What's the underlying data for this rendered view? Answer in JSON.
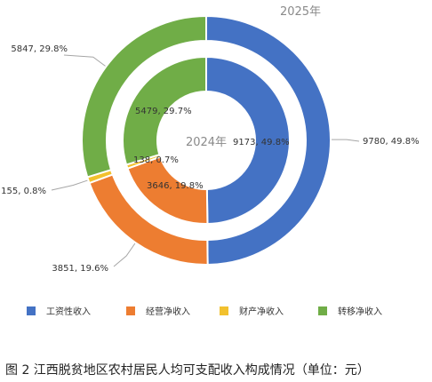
{
  "caption": "图 2   江西脱贫地区农村居民人均可支配收入构成情况（单位：元）",
  "chart_data": {
    "type": "donut",
    "categories": [
      "工资性收入",
      "经营净收入",
      "财产净收入",
      "转移净收入"
    ],
    "colors": [
      "#4472c4",
      "#ed7d31",
      "#f2c12e",
      "#70ad47"
    ],
    "legend_position": "bottom",
    "rings": [
      {
        "name": "2025年",
        "values": [
          9780,
          3851,
          155,
          5847
        ],
        "labels": [
          "9780, 49.8%",
          "3851, 19.6%",
          "155, 0.8%",
          "5847, 29.8%"
        ]
      },
      {
        "name": "2024年",
        "values": [
          9173,
          3646,
          138,
          5479
        ],
        "labels": [
          "9173, 49.8%",
          "3646, 19.8%",
          "138, 0.7%",
          "5479, 29.7%"
        ]
      }
    ]
  }
}
